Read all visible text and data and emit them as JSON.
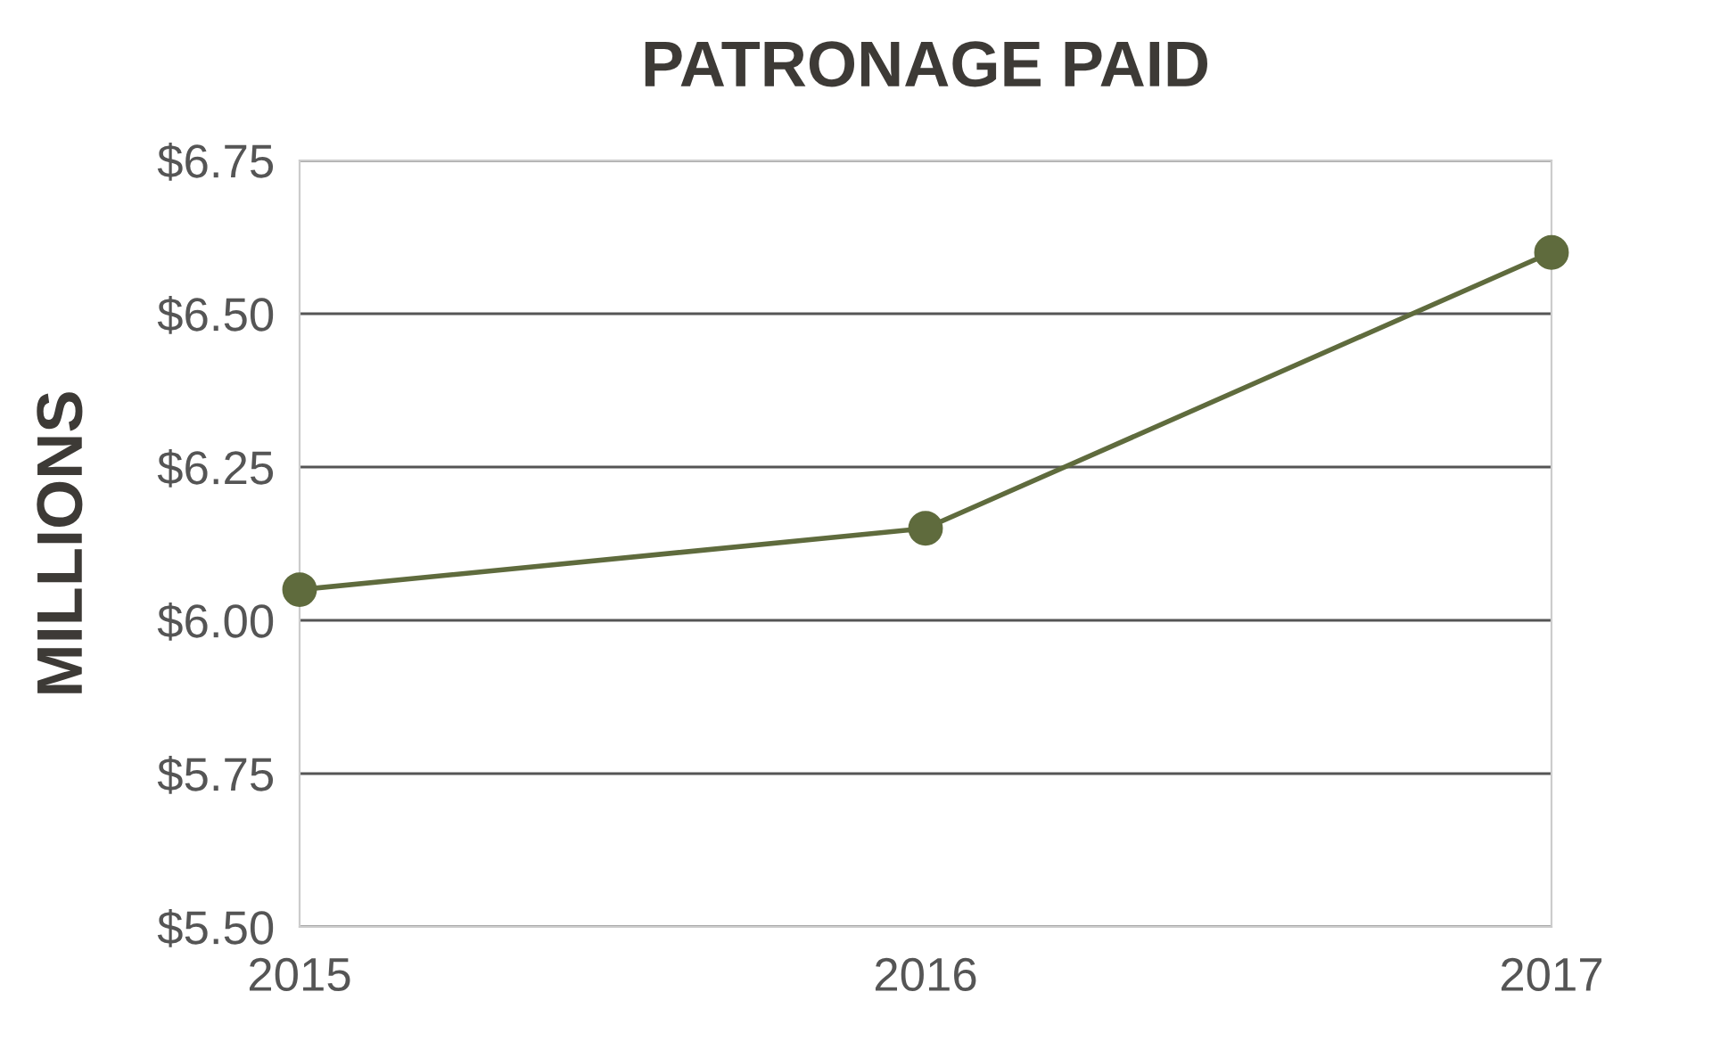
{
  "chart_data": {
    "type": "line",
    "title": "PATRONAGE PAID",
    "ylabel": "MILLIONS",
    "categories": [
      "2015",
      "2016",
      "2017"
    ],
    "series": [
      {
        "color": "#5f6b3d",
        "values": [
          6.05,
          6.15,
          6.6
        ]
      }
    ],
    "ylim": [
      5.5,
      6.75
    ],
    "yticks": [
      {
        "value": 5.5,
        "label": "$5.50"
      },
      {
        "value": 5.75,
        "label": "$5.75"
      },
      {
        "value": 6.0,
        "label": "$6.00"
      },
      {
        "value": 6.25,
        "label": "$6.25"
      },
      {
        "value": 6.5,
        "label": "$6.50"
      },
      {
        "value": 6.75,
        "label": "$6.75"
      }
    ],
    "grid": "y",
    "marker": "circle",
    "line_style": "solid"
  }
}
